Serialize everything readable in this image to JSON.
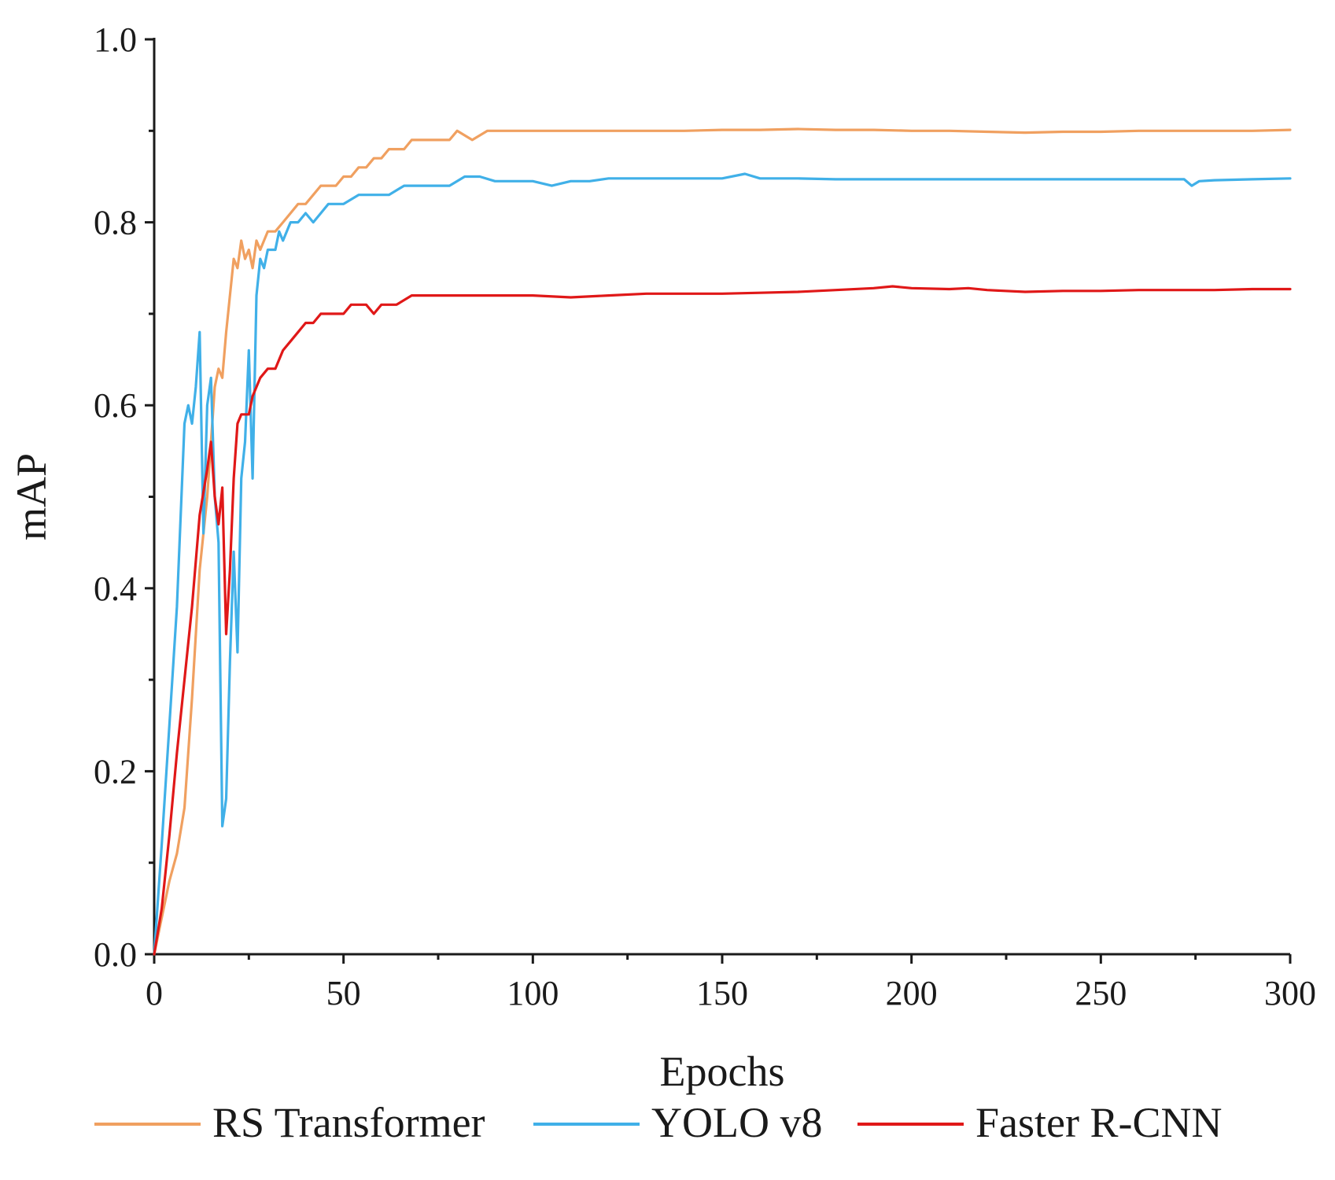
{
  "chart_data": {
    "type": "line",
    "title": "",
    "xlabel": "Epochs",
    "ylabel": "mAP",
    "xlim": [
      0,
      300
    ],
    "ylim": [
      0,
      1.0
    ],
    "x_ticks": [
      0,
      50,
      100,
      150,
      200,
      250,
      300
    ],
    "x_tick_labels": [
      "0",
      "50",
      "100",
      "150",
      "200",
      "250",
      "300"
    ],
    "y_ticks": [
      0.0,
      0.2,
      0.4,
      0.6,
      0.8,
      1.0
    ],
    "y_tick_labels": [
      "0.0",
      "0.2",
      "0.4",
      "0.6",
      "0.8",
      "1.0"
    ],
    "grid": false,
    "legend_position": "bottom",
    "series": [
      {
        "name": "RS Transformer",
        "color": "#f0a060",
        "points": [
          [
            0,
            0.0
          ],
          [
            2,
            0.04
          ],
          [
            4,
            0.08
          ],
          [
            6,
            0.11
          ],
          [
            8,
            0.16
          ],
          [
            10,
            0.28
          ],
          [
            12,
            0.42
          ],
          [
            14,
            0.5
          ],
          [
            15,
            0.56
          ],
          [
            16,
            0.62
          ],
          [
            17,
            0.64
          ],
          [
            18,
            0.63
          ],
          [
            19,
            0.68
          ],
          [
            20,
            0.72
          ],
          [
            21,
            0.76
          ],
          [
            22,
            0.75
          ],
          [
            23,
            0.78
          ],
          [
            24,
            0.76
          ],
          [
            25,
            0.77
          ],
          [
            26,
            0.75
          ],
          [
            27,
            0.78
          ],
          [
            28,
            0.77
          ],
          [
            30,
            0.79
          ],
          [
            32,
            0.79
          ],
          [
            34,
            0.8
          ],
          [
            36,
            0.81
          ],
          [
            38,
            0.82
          ],
          [
            40,
            0.82
          ],
          [
            42,
            0.83
          ],
          [
            44,
            0.84
          ],
          [
            46,
            0.84
          ],
          [
            48,
            0.84
          ],
          [
            50,
            0.85
          ],
          [
            52,
            0.85
          ],
          [
            54,
            0.86
          ],
          [
            56,
            0.86
          ],
          [
            58,
            0.87
          ],
          [
            60,
            0.87
          ],
          [
            62,
            0.88
          ],
          [
            64,
            0.88
          ],
          [
            66,
            0.88
          ],
          [
            68,
            0.89
          ],
          [
            70,
            0.89
          ],
          [
            72,
            0.89
          ],
          [
            74,
            0.89
          ],
          [
            76,
            0.89
          ],
          [
            78,
            0.89
          ],
          [
            80,
            0.9
          ],
          [
            84,
            0.89
          ],
          [
            88,
            0.9
          ],
          [
            92,
            0.9
          ],
          [
            96,
            0.9
          ],
          [
            100,
            0.9
          ],
          [
            105,
            0.9
          ],
          [
            110,
            0.9
          ],
          [
            115,
            0.9
          ],
          [
            120,
            0.9
          ],
          [
            130,
            0.9
          ],
          [
            140,
            0.9
          ],
          [
            150,
            0.901
          ],
          [
            160,
            0.901
          ],
          [
            170,
            0.902
          ],
          [
            180,
            0.901
          ],
          [
            190,
            0.901
          ],
          [
            200,
            0.9
          ],
          [
            210,
            0.9
          ],
          [
            220,
            0.899
          ],
          [
            230,
            0.898
          ],
          [
            240,
            0.899
          ],
          [
            250,
            0.899
          ],
          [
            260,
            0.9
          ],
          [
            270,
            0.9
          ],
          [
            280,
            0.9
          ],
          [
            290,
            0.9
          ],
          [
            300,
            0.901
          ]
        ]
      },
      {
        "name": "YOLO v8",
        "color": "#40b0e8",
        "points": [
          [
            0,
            0.0
          ],
          [
            2,
            0.12
          ],
          [
            4,
            0.25
          ],
          [
            6,
            0.38
          ],
          [
            8,
            0.58
          ],
          [
            9,
            0.6
          ],
          [
            10,
            0.58
          ],
          [
            11,
            0.62
          ],
          [
            12,
            0.68
          ],
          [
            13,
            0.46
          ],
          [
            14,
            0.6
          ],
          [
            15,
            0.63
          ],
          [
            16,
            0.5
          ],
          [
            17,
            0.45
          ],
          [
            18,
            0.14
          ],
          [
            19,
            0.17
          ],
          [
            20,
            0.32
          ],
          [
            21,
            0.44
          ],
          [
            22,
            0.33
          ],
          [
            23,
            0.52
          ],
          [
            24,
            0.56
          ],
          [
            25,
            0.66
          ],
          [
            26,
            0.52
          ],
          [
            27,
            0.72
          ],
          [
            28,
            0.76
          ],
          [
            29,
            0.75
          ],
          [
            30,
            0.77
          ],
          [
            32,
            0.77
          ],
          [
            33,
            0.79
          ],
          [
            34,
            0.78
          ],
          [
            36,
            0.8
          ],
          [
            38,
            0.8
          ],
          [
            40,
            0.81
          ],
          [
            42,
            0.8
          ],
          [
            44,
            0.81
          ],
          [
            46,
            0.82
          ],
          [
            48,
            0.82
          ],
          [
            50,
            0.82
          ],
          [
            54,
            0.83
          ],
          [
            58,
            0.83
          ],
          [
            62,
            0.83
          ],
          [
            66,
            0.84
          ],
          [
            70,
            0.84
          ],
          [
            74,
            0.84
          ],
          [
            78,
            0.84
          ],
          [
            82,
            0.85
          ],
          [
            86,
            0.85
          ],
          [
            90,
            0.845
          ],
          [
            95,
            0.845
          ],
          [
            100,
            0.845
          ],
          [
            105,
            0.84
          ],
          [
            110,
            0.845
          ],
          [
            115,
            0.845
          ],
          [
            120,
            0.848
          ],
          [
            130,
            0.848
          ],
          [
            140,
            0.848
          ],
          [
            150,
            0.848
          ],
          [
            156,
            0.853
          ],
          [
            160,
            0.848
          ],
          [
            170,
            0.848
          ],
          [
            180,
            0.847
          ],
          [
            200,
            0.847
          ],
          [
            220,
            0.847
          ],
          [
            240,
            0.847
          ],
          [
            260,
            0.847
          ],
          [
            272,
            0.847
          ],
          [
            274,
            0.84
          ],
          [
            276,
            0.845
          ],
          [
            280,
            0.846
          ],
          [
            290,
            0.847
          ],
          [
            300,
            0.848
          ]
        ]
      },
      {
        "name": "Faster R-CNN",
        "color": "#e01818",
        "points": [
          [
            0,
            0.0
          ],
          [
            2,
            0.05
          ],
          [
            4,
            0.13
          ],
          [
            6,
            0.22
          ],
          [
            8,
            0.3
          ],
          [
            10,
            0.38
          ],
          [
            12,
            0.48
          ],
          [
            14,
            0.53
          ],
          [
            15,
            0.56
          ],
          [
            16,
            0.5
          ],
          [
            17,
            0.47
          ],
          [
            18,
            0.51
          ],
          [
            19,
            0.35
          ],
          [
            20,
            0.42
          ],
          [
            21,
            0.52
          ],
          [
            22,
            0.58
          ],
          [
            23,
            0.59
          ],
          [
            24,
            0.59
          ],
          [
            25,
            0.59
          ],
          [
            26,
            0.61
          ],
          [
            27,
            0.62
          ],
          [
            28,
            0.63
          ],
          [
            30,
            0.64
          ],
          [
            32,
            0.64
          ],
          [
            34,
            0.66
          ],
          [
            36,
            0.67
          ],
          [
            38,
            0.68
          ],
          [
            40,
            0.69
          ],
          [
            42,
            0.69
          ],
          [
            44,
            0.7
          ],
          [
            46,
            0.7
          ],
          [
            48,
            0.7
          ],
          [
            50,
            0.7
          ],
          [
            52,
            0.71
          ],
          [
            54,
            0.71
          ],
          [
            56,
            0.71
          ],
          [
            58,
            0.7
          ],
          [
            60,
            0.71
          ],
          [
            64,
            0.71
          ],
          [
            68,
            0.72
          ],
          [
            72,
            0.72
          ],
          [
            76,
            0.72
          ],
          [
            80,
            0.72
          ],
          [
            84,
            0.72
          ],
          [
            88,
            0.72
          ],
          [
            92,
            0.72
          ],
          [
            96,
            0.72
          ],
          [
            100,
            0.72
          ],
          [
            110,
            0.718
          ],
          [
            120,
            0.72
          ],
          [
            130,
            0.722
          ],
          [
            140,
            0.722
          ],
          [
            150,
            0.722
          ],
          [
            160,
            0.723
          ],
          [
            170,
            0.724
          ],
          [
            180,
            0.726
          ],
          [
            190,
            0.728
          ],
          [
            195,
            0.73
          ],
          [
            200,
            0.728
          ],
          [
            210,
            0.727
          ],
          [
            215,
            0.728
          ],
          [
            220,
            0.726
          ],
          [
            230,
            0.724
          ],
          [
            240,
            0.725
          ],
          [
            250,
            0.725
          ],
          [
            260,
            0.726
          ],
          [
            270,
            0.726
          ],
          [
            280,
            0.726
          ],
          [
            290,
            0.727
          ],
          [
            300,
            0.727
          ]
        ]
      }
    ]
  }
}
